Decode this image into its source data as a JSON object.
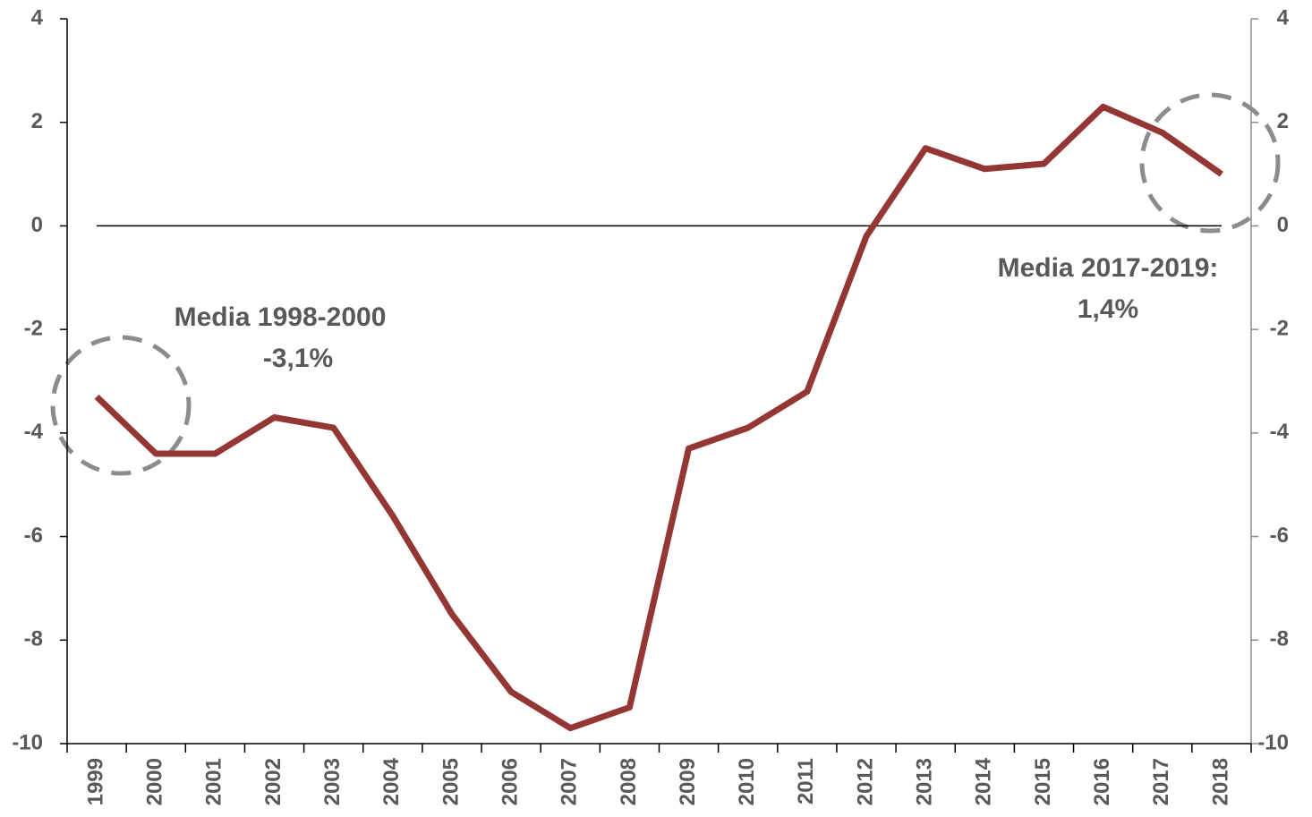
{
  "chart_data": {
    "type": "line",
    "categories": [
      "1999",
      "2000",
      "2001",
      "2002",
      "2003",
      "2004",
      "2005",
      "2006",
      "2007",
      "2008",
      "2009",
      "2010",
      "2011",
      "2012",
      "2013",
      "2014",
      "2015",
      "2016",
      "2017",
      "2018"
    ],
    "series": [
      {
        "name": null,
        "color": "#943634",
        "values": [
          -3.3,
          -4.4,
          -4.4,
          -3.7,
          -3.9,
          -5.6,
          -7.5,
          -9.0,
          -9.7,
          -9.3,
          -4.3,
          -3.9,
          -3.2,
          -0.2,
          1.5,
          1.1,
          1.2,
          2.3,
          1.8,
          1.0
        ]
      }
    ],
    "ylim": [
      -10,
      4
    ],
    "yticks": [
      -10,
      -8,
      -6,
      -4,
      -2,
      0,
      2,
      4
    ],
    "y2lim": [
      -10,
      4
    ],
    "y2ticks": [
      -10,
      -8,
      -6,
      -4,
      -2,
      0,
      2,
      4
    ],
    "annotations": [
      {
        "lines": [
          "Media 1998-2000",
          "-3,1%"
        ]
      },
      {
        "lines": [
          "Media 2017-2019:",
          "1,4%"
        ]
      }
    ]
  }
}
